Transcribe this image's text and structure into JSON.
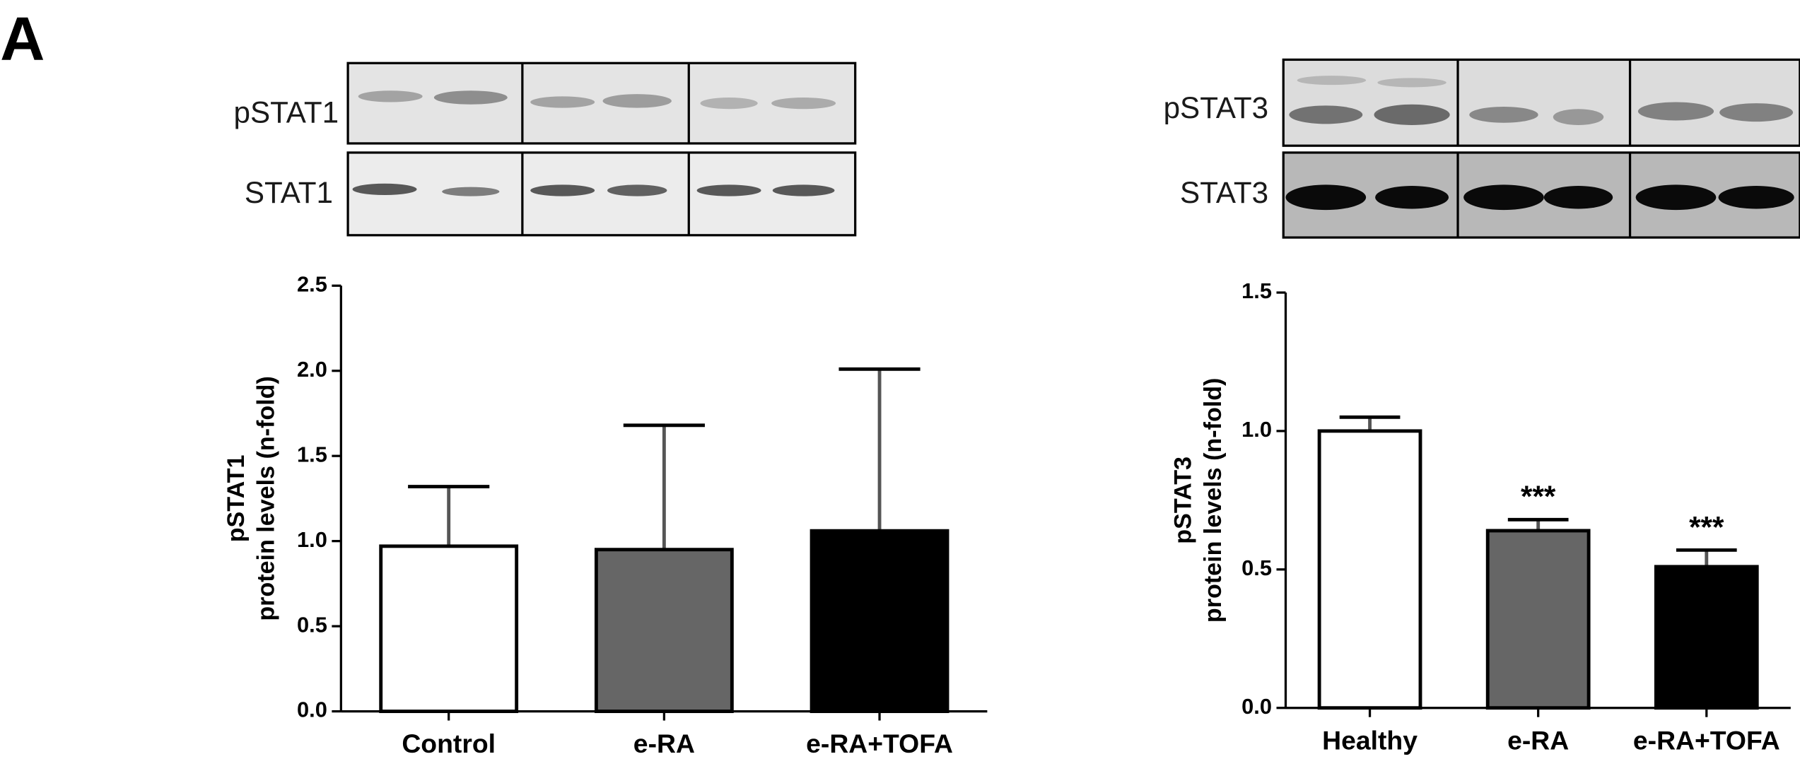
{
  "panel_label": "A",
  "blots": [
    {
      "rows": [
        "pSTAT1",
        "STAT1"
      ]
    },
    {
      "rows": [
        "pSTAT3",
        "STAT3"
      ]
    }
  ],
  "chart_data": [
    {
      "type": "bar",
      "ylabel": [
        "pSTAT1",
        "protein levels (n-fold)"
      ],
      "categories": [
        "Control",
        "e-RA",
        "e-RA+TOFA"
      ],
      "values": [
        0.97,
        0.95,
        1.06
      ],
      "errors": [
        0.35,
        0.73,
        0.95
      ],
      "colors": [
        "#ffffff",
        "#666666",
        "#000000"
      ],
      "ylim": [
        0,
        2.5
      ],
      "yticks": [
        {
          "value": 0,
          "label": "0.0"
        },
        {
          "value": 0.5,
          "label": "0.5"
        },
        {
          "value": 1,
          "label": "1.0"
        },
        {
          "value": 1.5,
          "label": "1.5"
        },
        {
          "value": 2,
          "label": "2.0"
        },
        {
          "value": 2.5,
          "label": "2.5"
        }
      ]
    },
    {
      "type": "bar",
      "ylabel": [
        "pSTAT3",
        "protein levels (n-fold)"
      ],
      "categories": [
        "Healthy",
        "e-RA",
        "e-RA+TOFA"
      ],
      "values": [
        1.0,
        0.64,
        0.51
      ],
      "errors": [
        0.05,
        0.04,
        0.06
      ],
      "annotations": [
        null,
        "***",
        "***"
      ],
      "colors": [
        "#ffffff",
        "#666666",
        "#000000"
      ],
      "ylim": [
        0,
        1.5
      ],
      "yticks": [
        {
          "value": 0,
          "label": "0.0"
        },
        {
          "value": 0.5,
          "label": "0.5"
        },
        {
          "value": 1,
          "label": "1.0"
        },
        {
          "value": 1.5,
          "label": "1.5"
        }
      ]
    }
  ]
}
